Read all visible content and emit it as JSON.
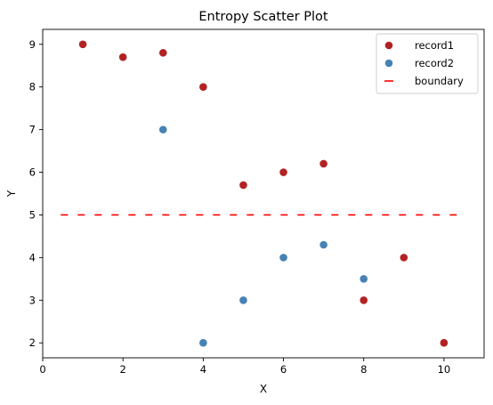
{
  "chart_data": {
    "type": "scatter",
    "title": "Entropy Scatter Plot",
    "xlabel": "X",
    "ylabel": "Y",
    "xlim": [
      0,
      11
    ],
    "ylim": [
      1.65,
      9.35
    ],
    "x_ticks": [
      0,
      2,
      4,
      6,
      8,
      10
    ],
    "y_ticks": [
      2,
      3,
      4,
      5,
      6,
      7,
      8,
      9
    ],
    "grid": false,
    "legend_position": "top-right",
    "series": [
      {
        "name": "record1",
        "kind": "scatter",
        "color": "#b22222",
        "points": [
          [
            1,
            9
          ],
          [
            2,
            8.7
          ],
          [
            3,
            8.8
          ],
          [
            4,
            8
          ],
          [
            5,
            5.7
          ],
          [
            6,
            6
          ],
          [
            7,
            6.2
          ],
          [
            8,
            3
          ],
          [
            9,
            4
          ],
          [
            10,
            2
          ]
        ]
      },
      {
        "name": "record2",
        "kind": "scatter",
        "color": "#4682b4",
        "points": [
          [
            3,
            7
          ],
          [
            4,
            2
          ],
          [
            5,
            3
          ],
          [
            6,
            4
          ],
          [
            7,
            4.3
          ],
          [
            8,
            3.5
          ]
        ]
      },
      {
        "name": "boundary",
        "kind": "hline",
        "color": "#ff0000",
        "style": "dashed",
        "y": 5,
        "x_range": [
          0.45,
          10.55
        ]
      }
    ]
  }
}
